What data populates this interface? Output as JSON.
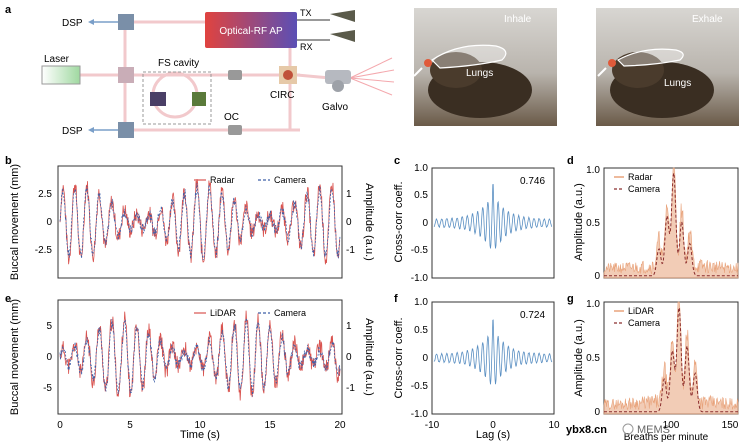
{
  "panel_letters": {
    "a": "a",
    "b": "b",
    "c": "c",
    "d": "d",
    "e": "e",
    "f": "f",
    "g": "g"
  },
  "schematic": {
    "dsp_top": "DSP",
    "dsp_bottom": "DSP",
    "optical_rf_ap": "Optical-RF AP",
    "tx": "TX",
    "rx": "RX",
    "laser": "Laser",
    "fs_cavity": "FS cavity",
    "circ": "CIRC",
    "oc": "OC",
    "galvo": "Galvo"
  },
  "photos": {
    "inhale_label": "Inhale",
    "exhale_label": "Exhale",
    "lungs_label_1": "Lungs",
    "lungs_label_2": "Lungs"
  },
  "colors": {
    "radar_red": "#d9534f",
    "camera_blue": "#3d5fa8",
    "xcorr_blue": "#5a8fc2",
    "spectrum_orange": "#e8a27a",
    "spectrum_dark": "#8b2d2d",
    "box_gradient_start": "#e0433f",
    "box_gradient_end": "#5b4fb5"
  },
  "chart_data": [
    {
      "panel": "b",
      "type": "line",
      "ylabel": "Buccal movement (mm)",
      "ylabel_right": "Amplitude (a.u.)",
      "yticks": [
        "2.5",
        "0",
        "-2.5"
      ],
      "yticks_right": [
        "1",
        "0",
        "-1"
      ],
      "ylim": [
        -4,
        4
      ],
      "xlim": [
        0,
        20
      ],
      "series": [
        {
          "name": "Radar",
          "style": "solid"
        },
        {
          "name": "Camera",
          "style": "dashed"
        }
      ]
    },
    {
      "panel": "c",
      "type": "line",
      "ylabel": "Cross-corr coeff.",
      "value_label": "0.746",
      "yticks": [
        "1.0",
        "0.5",
        "0",
        "-0.5",
        "-1.0"
      ],
      "ylim": [
        -1,
        1
      ],
      "xlim": [
        -10,
        10
      ],
      "peak": 0.746
    },
    {
      "panel": "d",
      "type": "area",
      "ylabel": "Amplitude (a.u.)",
      "yticks": [
        "1.0",
        "0.5",
        "0"
      ],
      "ylim": [
        0,
        1
      ],
      "series": [
        {
          "name": "Radar",
          "style": "solid"
        },
        {
          "name": "Camera",
          "style": "dashed"
        }
      ]
    },
    {
      "panel": "e",
      "type": "line",
      "ylabel": "Buccal movement (mm)",
      "ylabel_right": "Amplitude (a.u.)",
      "yticks": [
        "5",
        "0",
        "-5"
      ],
      "yticks_right": [
        "1",
        "0",
        "-1"
      ],
      "xticks": [
        "0",
        "5",
        "10",
        "15",
        "20"
      ],
      "xlabel": "Time (s)",
      "ylim": [
        -7,
        7
      ],
      "xlim": [
        0,
        20
      ],
      "series": [
        {
          "name": "LiDAR",
          "style": "solid"
        },
        {
          "name": "Camera",
          "style": "dashed"
        }
      ]
    },
    {
      "panel": "f",
      "type": "line",
      "ylabel": "Cross-corr coeff.",
      "value_label": "0.724",
      "yticks": [
        "1.0",
        "0.5",
        "0",
        "-0.5",
        "-1.0"
      ],
      "xticks": [
        "-10",
        "0",
        "10"
      ],
      "xlabel": "Lag (s)",
      "ylim": [
        -1,
        1
      ],
      "xlim": [
        -10,
        10
      ],
      "peak": 0.724
    },
    {
      "panel": "g",
      "type": "area",
      "ylabel": "Amplitude (a.u.)",
      "yticks": [
        "1.0",
        "0.5",
        "0"
      ],
      "ylim": [
        0,
        1
      ],
      "xticks": [
        "100",
        "150"
      ],
      "xlabel": "Breaths per minute",
      "series": [
        {
          "name": "LiDAR",
          "style": "solid"
        },
        {
          "name": "Camera",
          "style": "dashed"
        }
      ]
    }
  ],
  "watermark": {
    "left": "ybx8.cn",
    "right": "MEMS"
  }
}
